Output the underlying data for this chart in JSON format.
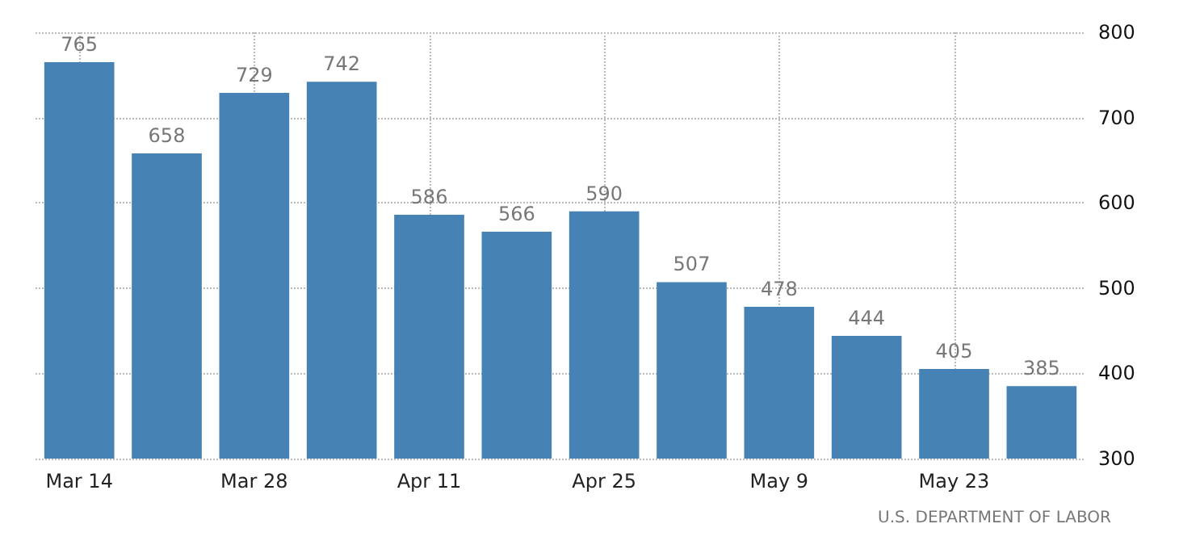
{
  "chart_data": {
    "type": "bar",
    "categories": [
      "Mar 14",
      null,
      "Mar 28",
      null,
      "Apr 11",
      null,
      "Apr 25",
      null,
      "May 9",
      null,
      "May 23",
      null
    ],
    "values": [
      765,
      658,
      729,
      742,
      586,
      566,
      590,
      507,
      478,
      444,
      405,
      385
    ],
    "color": "#4682b4",
    "ylim": [
      300,
      800
    ],
    "yticks": [
      300,
      400,
      500,
      600,
      700,
      800
    ],
    "grid": true,
    "data_labels": true,
    "annotations": [
      "U.S. DEPARTMENT OF LABOR"
    ]
  }
}
